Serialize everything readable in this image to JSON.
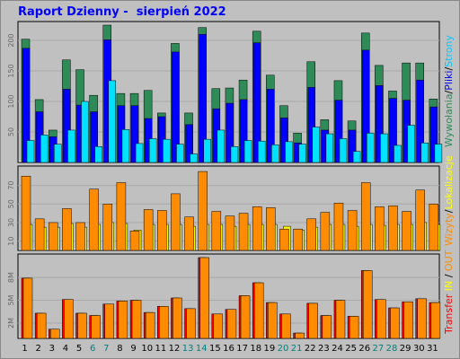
{
  "title": "Raport Dzienny -  sierpień 2022",
  "colors": {
    "background": "#c0c0c0",
    "panel": "#c0c0c0",
    "hits": "#2e8b57",
    "files": "#0000ff",
    "pages": "#00e0ff",
    "visits": "#ff8c00",
    "sites": "#ffff00",
    "kbytes": "#ff0000",
    "kbytes_out": "#ff8c00",
    "title": "#0000ff",
    "weekend_day": "#008080"
  },
  "right_labels": {
    "top": [
      {
        "text": "Wywołania",
        "color": "#2e8b57"
      },
      {
        "text": "/",
        "color": "#000000"
      },
      {
        "text": "Pliki",
        "color": "#0000ff"
      },
      {
        "text": "/",
        "color": "#000000"
      },
      {
        "text": "Strony",
        "color": "#00c8ff"
      }
    ],
    "middle": [
      {
        "text": "Wizyty",
        "color": "#ff8c00"
      },
      {
        "text": "/",
        "color": "#000000"
      },
      {
        "text": "Lokalizacje",
        "color": "#ffff00"
      }
    ],
    "bottom": [
      {
        "text": "Transfer",
        "color": "#ff0000"
      },
      {
        "text": " IN ",
        "color": "#ffff00"
      },
      {
        "text": "/",
        "color": "#000000"
      },
      {
        "text": " OUT",
        "color": "#ff8c00"
      }
    ]
  },
  "chart_data": [
    {
      "type": "bar",
      "panel": "hits-files-pages",
      "categories": [
        "1",
        "2",
        "3",
        "4",
        "5",
        "6",
        "7",
        "8",
        "9",
        "10",
        "11",
        "12",
        "13",
        "14",
        "15",
        "16",
        "17",
        "18",
        "19",
        "20",
        "21",
        "22",
        "23",
        "24",
        "25",
        "26",
        "27",
        "28",
        "29",
        "30",
        "31"
      ],
      "yticks": [
        50,
        100,
        150,
        200
      ],
      "ylim": [
        0,
        225
      ],
      "series": [
        {
          "name": "Wywołania",
          "values": [
            202,
            103,
            53,
            168,
            152,
            110,
            225,
            113,
            113,
            118,
            81,
            195,
            81,
            221,
            121,
            122,
            135,
            215,
            143,
            93,
            48,
            165,
            70,
            134,
            68,
            212,
            159,
            117,
            163,
            163,
            104
          ]
        },
        {
          "name": "Pliki",
          "values": [
            187,
            83,
            42,
            120,
            94,
            83,
            201,
            93,
            93,
            72,
            75,
            181,
            62,
            210,
            88,
            97,
            103,
            196,
            120,
            73,
            32,
            123,
            53,
            102,
            53,
            184,
            126,
            105,
            102,
            135,
            91
          ]
        },
        {
          "name": "Strony",
          "values": [
            36,
            45,
            30,
            53,
            100,
            26,
            134,
            54,
            31,
            39,
            38,
            30,
            14,
            38,
            53,
            26,
            36,
            35,
            29,
            34,
            30,
            58,
            47,
            39,
            18,
            48,
            47,
            28,
            61,
            32,
            30
          ]
        }
      ]
    },
    {
      "type": "bar",
      "panel": "visits-sites",
      "categories": [
        "1",
        "2",
        "3",
        "4",
        "5",
        "6",
        "7",
        "8",
        "9",
        "10",
        "11",
        "12",
        "13",
        "14",
        "15",
        "16",
        "17",
        "18",
        "19",
        "20",
        "21",
        "22",
        "23",
        "24",
        "25",
        "26",
        "27",
        "28",
        "29",
        "30",
        "31"
      ],
      "yticks": [
        10,
        30,
        50,
        70
      ],
      "ylim": [
        0,
        87
      ],
      "series": [
        {
          "name": "Wizyty",
          "values": [
            80,
            34,
            30,
            45,
            30,
            66,
            50,
            73,
            21,
            44,
            43,
            61,
            36,
            85,
            42,
            37,
            40,
            47,
            46,
            23,
            23,
            34,
            41,
            51,
            43,
            73,
            47,
            48,
            42,
            65,
            50
          ]
        },
        {
          "name": "Lokalizacje",
          "values": [
            28,
            25,
            25,
            29,
            25,
            28,
            30,
            29,
            22,
            28,
            28,
            28,
            26,
            28,
            28,
            26,
            28,
            28,
            28,
            26,
            22,
            25,
            28,
            28,
            26,
            28,
            27,
            28,
            28,
            30,
            28
          ]
        }
      ]
    },
    {
      "type": "bar",
      "panel": "transfer",
      "categories": [
        "1",
        "2",
        "3",
        "4",
        "5",
        "6",
        "7",
        "8",
        "9",
        "10",
        "11",
        "12",
        "13",
        "14",
        "15",
        "16",
        "17",
        "18",
        "19",
        "20",
        "21",
        "22",
        "23",
        "24",
        "25",
        "26",
        "27",
        "28",
        "29",
        "30",
        "31"
      ],
      "yticks": [
        "2M",
        "5M",
        "8M"
      ],
      "ylim": [
        0,
        10.6
      ],
      "series": [
        {
          "name": "Transfer",
          "values": [
            7.9,
            3.3,
            1.2,
            5.1,
            3.3,
            3.0,
            4.5,
            4.9,
            5.0,
            3.4,
            4.2,
            5.3,
            3.9,
            10.6,
            3.2,
            3.8,
            5.6,
            7.3,
            4.7,
            3.2,
            0.7,
            4.6,
            3.0,
            5.0,
            2.9,
            8.9,
            5.1,
            4.0,
            4.8,
            5.2,
            4.7
          ]
        }
      ]
    }
  ]
}
